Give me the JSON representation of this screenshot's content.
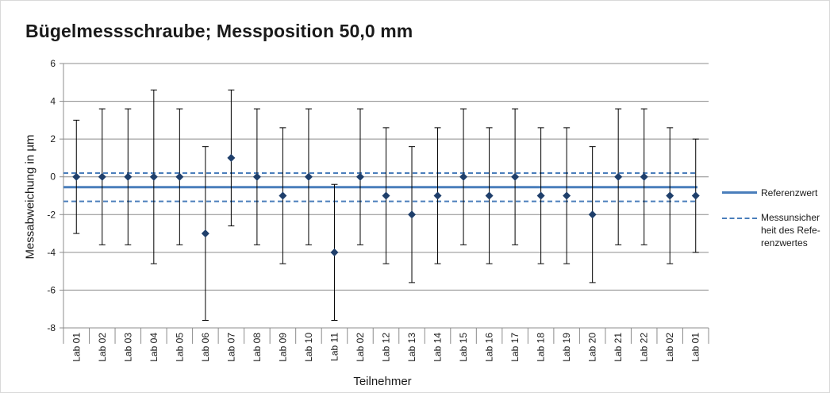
{
  "chart_data": {
    "type": "scatter",
    "title": "Bügelmessschraube; Messposition 50,0 mm",
    "xlabel": "Teilnehmer",
    "ylabel": "Messabweichung in µm",
    "ylim": [
      -8,
      6
    ],
    "yticks": [
      6,
      4,
      2,
      0,
      -2,
      -4,
      -6,
      -8
    ],
    "grid": true,
    "legend_position": "right",
    "colors": {
      "points": "#1f3f6b",
      "reference": "#4a7ebb",
      "errorbars": "#000000",
      "grid": "#8c8c8c"
    },
    "categories": [
      "Lab 01",
      "Lab 02",
      "Lab 03",
      "Lab 04",
      "Lab 05",
      "Lab 06",
      "Lab 07",
      "Lab 08",
      "Lab 09",
      "Lab 10",
      "Lab 11",
      "Lab 02",
      "Lab 12",
      "Lab 13",
      "Lab 14",
      "Lab 15",
      "Lab 16",
      "Lab 17",
      "Lab 18",
      "Lab 19",
      "Lab 20",
      "Lab 21",
      "Lab 22",
      "Lab 02",
      "Lab 01"
    ],
    "values": [
      0,
      0,
      0,
      0,
      0,
      -3,
      1,
      0,
      -1,
      0,
      -4,
      0,
      -1,
      -2,
      -1,
      0,
      -1,
      0,
      -1,
      -1,
      -2,
      0,
      0,
      -1,
      -1
    ],
    "uncertainty": [
      3,
      3.6,
      3.6,
      4.6,
      3.6,
      4.6,
      3.6,
      3.6,
      3.6,
      3.6,
      3.6,
      3.6,
      3.6,
      3.6,
      3.6,
      3.6,
      3.6,
      3.6,
      3.6,
      3.6,
      3.6,
      3.6,
      3.6,
      3.6,
      3
    ],
    "reference": {
      "value": -0.55,
      "upper": 0.2,
      "lower": -1.3
    },
    "legend": [
      {
        "label_lines": [
          "Referenzwert"
        ],
        "style": "solid"
      },
      {
        "label_lines": [
          "Messunsicher",
          "heit des Refe-",
          "renzwertes"
        ],
        "style": "dashed"
      }
    ]
  }
}
